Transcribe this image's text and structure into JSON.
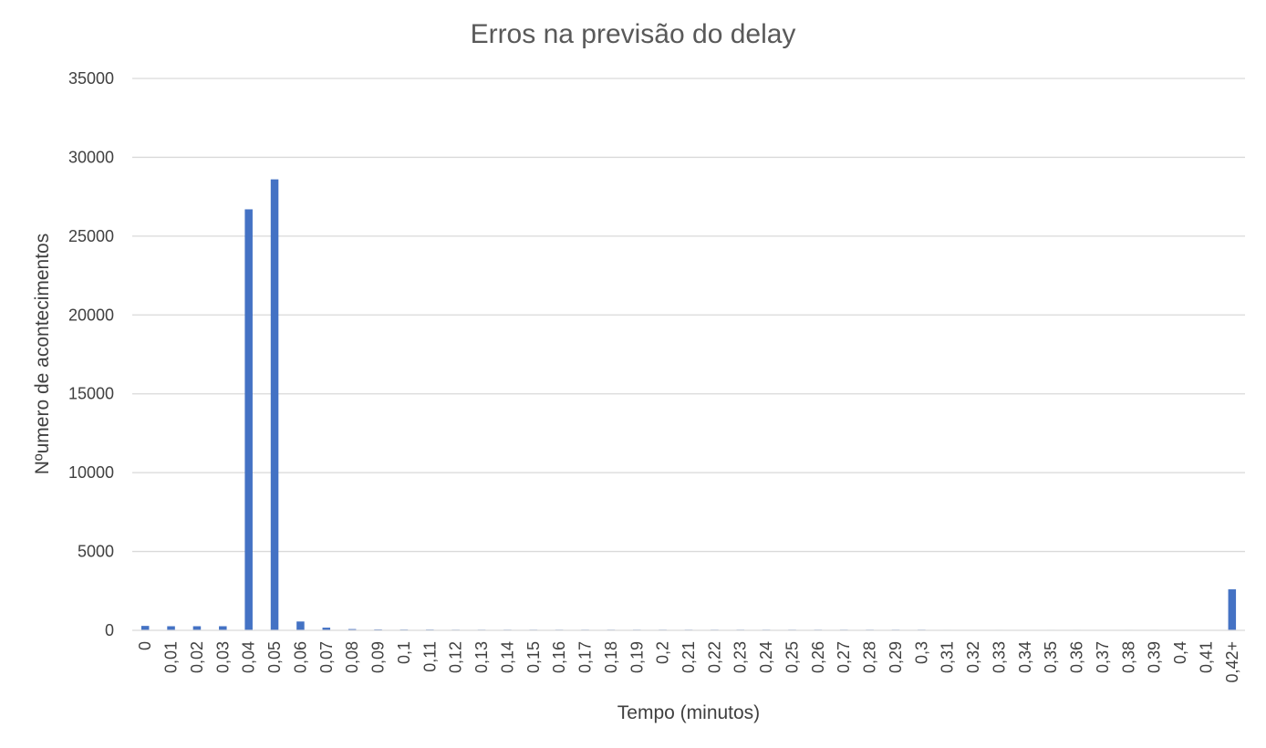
{
  "chart_data": {
    "type": "bar",
    "title": "Erros na previsão do delay",
    "xlabel": "Tempo (minutos)",
    "ylabel": "Nºumero de acontecimentos",
    "ylim": [
      0,
      35000
    ],
    "yticks": [
      "0",
      "5000",
      "10000",
      "15000",
      "20000",
      "25000",
      "30000",
      "35000"
    ],
    "grid": true,
    "legend": "none",
    "categories": [
      "0",
      "0,01",
      "0,02",
      "0,03",
      "0,04",
      "0,05",
      "0,06",
      "0,07",
      "0,08",
      "0,09",
      "0,1",
      "0,11",
      "0,12",
      "0,13",
      "0,14",
      "0,15",
      "0,16",
      "0,17",
      "0,18",
      "0,19",
      "0,2",
      "0,21",
      "0,22",
      "0,23",
      "0,24",
      "0,25",
      "0,26",
      "0,27",
      "0,28",
      "0,29",
      "0,3",
      "0,31",
      "0,32",
      "0,33",
      "0,34",
      "0,35",
      "0,36",
      "0,37",
      "0,38",
      "0,39",
      "0,4",
      "0,41",
      "0,42+"
    ],
    "values": [
      280,
      260,
      260,
      260,
      26700,
      28600,
      560,
      170,
      80,
      60,
      50,
      50,
      40,
      40,
      40,
      40,
      40,
      40,
      40,
      40,
      40,
      40,
      40,
      40,
      40,
      40,
      40,
      40,
      40,
      40,
      40,
      30,
      20,
      30,
      20,
      30,
      30,
      20,
      30,
      30,
      20,
      20,
      2600
    ],
    "colors": {
      "bar": "#4472C4",
      "grid": "#D9D9D9",
      "text": "#404040",
      "title": "#595959"
    }
  }
}
